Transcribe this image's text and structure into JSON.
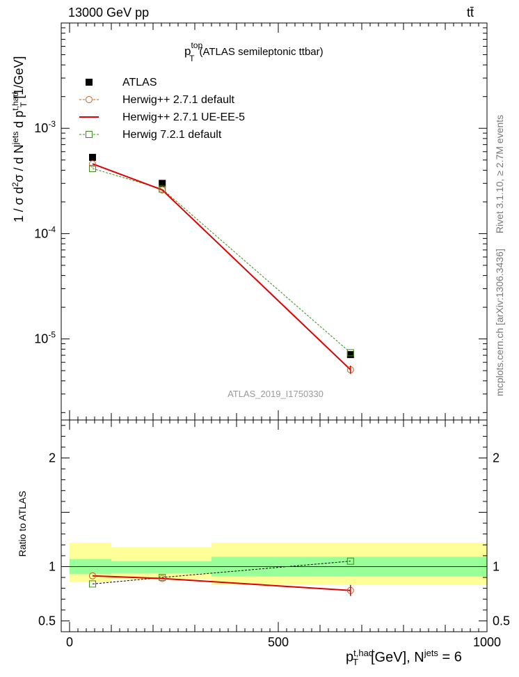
{
  "header": {
    "left": "13000 GeV pp",
    "right": "tt̄"
  },
  "side_labels": {
    "rivet": "Rivet 3.1.10, ≥ 2.7M events",
    "mcplots": "mcplots.cern.ch [arXiv:1306.3436]"
  },
  "chart_data": [
    {
      "type": "scatter",
      "title": "p_T^top (ATLAS semileptonic ttbar)",
      "ylabel": "1 / σ d²σ / d N^jets d p_T^t,had [1/GeV]",
      "xlabel": "p_T^t,had [GeV], N^jets = 6",
      "yscale": "log",
      "ylim": [
        1.7e-06,
        0.01
      ],
      "xlim": [
        -20,
        1000
      ],
      "y_ticks": [
        "10⁻⁵",
        "10⁻⁴",
        "10⁻³"
      ],
      "watermark": "ATLAS_2019_I1750330",
      "x": [
        55,
        222,
        673
      ],
      "bin_edges": [
        0,
        100,
        340,
        1000
      ],
      "series": [
        {
          "name": "ATLAS",
          "values": [
            0.00053,
            0.0003,
            7.1e-06
          ],
          "color": "#000000",
          "marker": "filled-square"
        },
        {
          "name": "Herwig++ 2.7.1 default",
          "values": [
            0.00046,
            0.00026,
            5.1e-06
          ],
          "color": "#c0601a",
          "marker": "open-circle",
          "line": "dashed"
        },
        {
          "name": "Herwig++ 2.7.1 UE-EE-5",
          "values": [
            0.00046,
            0.00026,
            5.1e-06
          ],
          "color": "#e00000",
          "marker": "none",
          "line": "solid"
        },
        {
          "name": "Herwig 7.2.1 default",
          "values": [
            0.000415,
            0.000265,
            7.4e-06
          ],
          "color": "#3a8a1a",
          "marker": "open-square",
          "line": "dashed"
        }
      ]
    },
    {
      "type": "scatter",
      "ylabel": "Ratio to ATLAS",
      "xlabel": "p_T^t,had [GeV], N^jets = 6",
      "ylim": [
        0.4,
        2.35
      ],
      "xlim": [
        -20,
        1000
      ],
      "y_ticks": [
        "0.5",
        "1",
        "2"
      ],
      "x_ticks": [
        "0",
        "500",
        "1000"
      ],
      "x": [
        55,
        222,
        673
      ],
      "bands": {
        "bin_edges": [
          0,
          100,
          340,
          1000
        ],
        "green_lo": [
          0.93,
          0.94,
          0.91
        ],
        "green_hi": [
          1.07,
          1.05,
          1.09
        ],
        "yellow_lo": [
          0.86,
          0.88,
          0.83
        ],
        "yellow_hi": [
          1.22,
          1.18,
          1.22
        ]
      },
      "series": [
        {
          "name": "Herwig++ 2.7.1 default",
          "values": [
            0.915,
            0.89,
            0.78
          ]
        },
        {
          "name": "Herwig++ 2.7.1 UE-EE-5",
          "values": [
            0.915,
            0.89,
            0.78
          ]
        },
        {
          "name": "Herwig 7.2.1 default",
          "values": [
            0.84,
            0.9,
            1.05
          ]
        }
      ]
    }
  ]
}
